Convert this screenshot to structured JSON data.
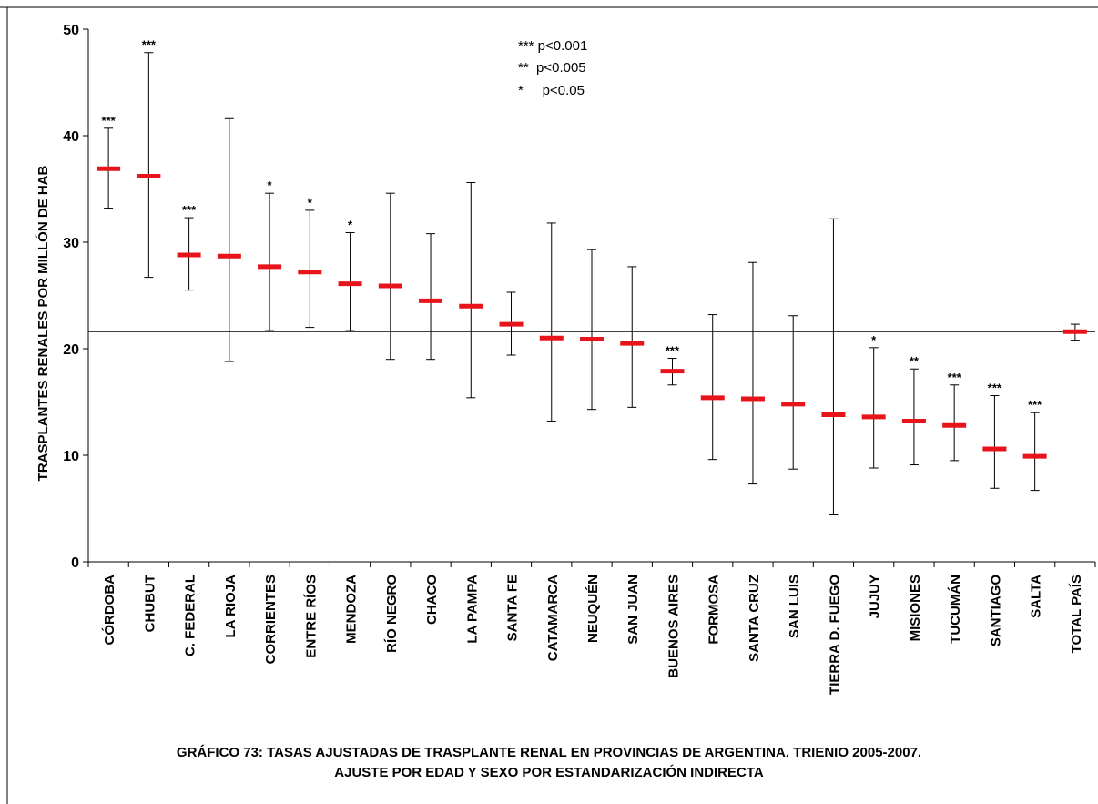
{
  "chart_data": {
    "type": "scatter",
    "title": "",
    "ylabel": "TRASPLANTES RENALES POR MILLÓN DE HAB",
    "xlabel": "",
    "ylim": [
      0,
      50
    ],
    "yticks": [
      0,
      10,
      20,
      30,
      40,
      50
    ],
    "reference_line": 21.6,
    "categories": [
      "CÓRDOBA",
      "CHUBUT",
      "C. FEDERAL",
      "LA RIOJA",
      "CORRIENTES",
      "ENTRE RÍOS",
      "MENDOZA",
      "RÍO NEGRO",
      "CHACO",
      "LA PAMPA",
      "SANTA FE",
      "CATAMARCA",
      "NEUQUÉN",
      "SAN JUAN",
      "BUENOS AIRES",
      "FORMOSA",
      "SANTA CRUZ",
      "SAN LUIS",
      "TIERRA D. FUEGO",
      "JUJUY",
      "MISIONES",
      "TUCUMÁN",
      "SANTIAGO",
      "SALTA",
      "TOTAL PAÍS"
    ],
    "series": [
      {
        "rate": [
          36.9,
          36.2,
          28.8,
          28.7,
          27.7,
          27.2,
          26.1,
          25.9,
          24.5,
          24.0,
          22.3,
          21.0,
          20.9,
          20.5,
          17.9,
          15.4,
          15.3,
          14.8,
          13.8,
          13.6,
          13.2,
          12.8,
          10.6,
          9.9,
          21.6
        ],
        "lower": [
          33.2,
          26.7,
          25.5,
          18.8,
          21.7,
          22.0,
          21.7,
          19.0,
          19.0,
          15.4,
          19.4,
          13.2,
          14.3,
          14.5,
          16.6,
          9.6,
          7.3,
          8.7,
          4.4,
          8.8,
          9.1,
          9.5,
          6.9,
          6.7,
          20.8
        ],
        "upper": [
          40.7,
          47.8,
          32.3,
          41.6,
          34.6,
          33.0,
          30.9,
          34.6,
          30.8,
          35.6,
          25.3,
          31.8,
          29.3,
          27.7,
          19.1,
          23.2,
          28.1,
          23.1,
          32.2,
          20.1,
          18.1,
          16.6,
          15.6,
          14.0,
          22.3
        ]
      }
    ],
    "significance": [
      "***",
      "***",
      "***",
      "",
      "*",
      "*",
      "*",
      "",
      "",
      "",
      "",
      "",
      "",
      "",
      "***",
      "",
      "",
      "",
      "",
      "*",
      "**",
      "***",
      "***",
      "***",
      ""
    ],
    "legend": [
      "*** p<0.001",
      "**  p<0.005",
      "*     p<0.05"
    ],
    "colors": {
      "point": "#e8141b",
      "bars": "#000000",
      "axis": "#000000"
    }
  },
  "caption": {
    "line1": "GRÁFICO 73: TASAS AJUSTADAS DE TRASPLANTE RENAL EN PROVINCIAS DE ARGENTINA. TRIENIO  2005-2007.",
    "line2": "AJUSTE POR EDAD Y SEXO POR ESTANDARIZACIÓN INDIRECTA"
  }
}
